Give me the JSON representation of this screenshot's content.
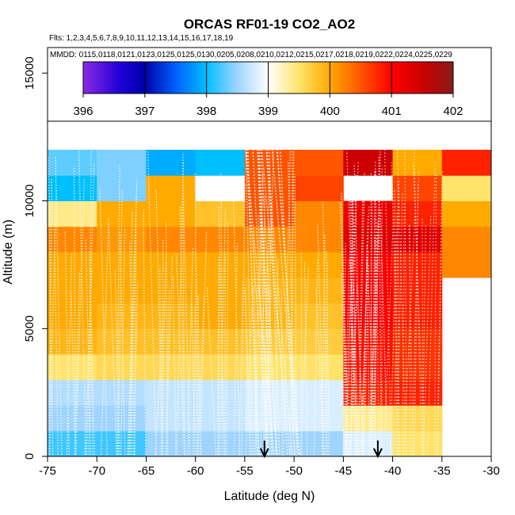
{
  "chart_data": {
    "type": "heatmap",
    "title": "ORCAS RF01-19 CO2_AO2",
    "flights_line": "Flts: 1,2,3,4,5,6,7,8,9,10,11,12,13,14,15,16,17,18,19",
    "dates_line": "MMDD: 0115,0118,0121,0123,0125,0125,0130,0205,0208,0210,0212,0215,0217,0218,0219,0222,0224,0225,0229",
    "xlabel": "Latitude (deg N)",
    "ylabel": "Altitude (m)",
    "xlim": [
      -75,
      -30
    ],
    "ylim": [
      0,
      16000
    ],
    "x_ticks": [
      -75,
      -70,
      -65,
      -60,
      -55,
      -50,
      -45,
      -40,
      -35,
      -30
    ],
    "y_ticks": [
      0,
      5000,
      10000,
      15000
    ],
    "lat_bin_edges": [
      -75,
      -70,
      -65,
      -60,
      -55,
      -50,
      -45,
      -40,
      -35,
      -30
    ],
    "alt_bin_edges": [
      0,
      1000,
      2000,
      3000,
      4000,
      5000,
      6000,
      7000,
      8000,
      9000,
      10000,
      11000,
      12000
    ],
    "colorbar": {
      "min": 396,
      "max": 402,
      "tick_labels": [
        "396",
        "397",
        "398",
        "399",
        "400",
        "401",
        "402"
      ],
      "stops": [
        {
          "v": 396.0,
          "c": "#8a2be2"
        },
        {
          "v": 396.6,
          "c": "#1f00d9"
        },
        {
          "v": 397.0,
          "c": "#0000a8"
        },
        {
          "v": 397.5,
          "c": "#0060ff"
        },
        {
          "v": 398.0,
          "c": "#00bfff"
        },
        {
          "v": 398.5,
          "c": "#9fd4ff"
        },
        {
          "v": 399.0,
          "c": "#ffffff"
        },
        {
          "v": 399.5,
          "c": "#ffe36a"
        },
        {
          "v": 400.0,
          "c": "#ffaa00"
        },
        {
          "v": 400.5,
          "c": "#ff5500"
        },
        {
          "v": 401.0,
          "c": "#ff0000"
        },
        {
          "v": 401.5,
          "c": "#cc0000"
        },
        {
          "v": 402.0,
          "c": "#8b1a1a"
        }
      ]
    },
    "grid_values_by_altitude_bin": [
      [
        398.2,
        398.2,
        398.5,
        398.5,
        398.5,
        398.5,
        398.8,
        399.5,
        null
      ],
      [
        398.5,
        398.5,
        398.7,
        398.7,
        398.8,
        398.8,
        399.4,
        399.6,
        null
      ],
      [
        398.6,
        398.6,
        398.7,
        398.7,
        398.8,
        398.8,
        400.8,
        400.8,
        null
      ],
      [
        399.5,
        399.6,
        399.6,
        399.6,
        399.5,
        399.5,
        400.9,
        400.7,
        null
      ],
      [
        399.9,
        399.8,
        399.8,
        399.8,
        399.7,
        399.7,
        400.9,
        400.7,
        null
      ],
      [
        400.0,
        399.9,
        399.9,
        400.0,
        399.9,
        399.8,
        401.0,
        400.8,
        null
      ],
      [
        400.0,
        400.0,
        400.0,
        400.0,
        399.9,
        399.9,
        401.0,
        400.8,
        null
      ],
      [
        400.0,
        400.0,
        400.0,
        400.0,
        400.0,
        400.0,
        401.0,
        400.8,
        400.2
      ],
      [
        400.2,
        400.1,
        400.2,
        400.2,
        400.2,
        400.2,
        401.3,
        401.3,
        400.2
      ],
      [
        399.4,
        400.0,
        400.0,
        399.8,
        400.5,
        400.2,
        401.2,
        400.8,
        400.0
      ],
      [
        398.0,
        398.4,
        400.0,
        399.0,
        400.5,
        400.6,
        null,
        400.6,
        399.5
      ],
      [
        398.3,
        398.4,
        397.9,
        398.0,
        400.5,
        400.5,
        401.5,
        400.0,
        400.8
      ]
    ],
    "arrow_markers_lat": [
      -53,
      -41.5
    ],
    "legend": "none"
  }
}
